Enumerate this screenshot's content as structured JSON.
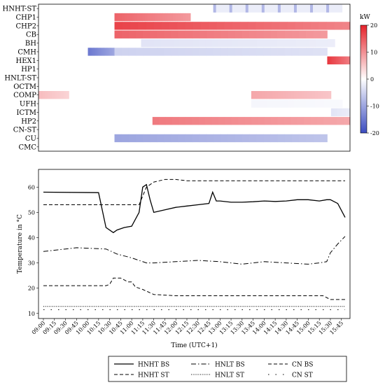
{
  "chart_data": [
    {
      "type": "heatmap",
      "title": "",
      "colorbar": {
        "label": "kW",
        "ticks": [
          20,
          10,
          0,
          -10,
          -20
        ],
        "range": [
          -20,
          20
        ],
        "colormap": "diverging",
        "colors": {
          "negative": "#3b4cc0",
          "zero": "#ffffff",
          "positive": "#e5222a"
        }
      },
      "rows": [
        "HNHT-ST",
        "CHP1",
        "CHP2",
        "CB",
        "BH",
        "CMH",
        "HEX1",
        "HP1",
        "HNLT-ST",
        "OCTM",
        "COMP",
        "UFH",
        "ICTM",
        "HP2",
        "CN-ST",
        "CU",
        "CMC"
      ],
      "x_range": [
        "09:00",
        "15:50"
      ],
      "segments": [
        {
          "row": "HNHT-ST",
          "start": "12:50",
          "end": "15:40",
          "value": -8,
          "pattern": "pulses"
        },
        {
          "row": "CHP1",
          "start": "10:40",
          "end": "12:20",
          "value": 14
        },
        {
          "row": "CHP2",
          "start": "10:40",
          "end": "15:50",
          "value": 17
        },
        {
          "row": "CB",
          "start": "10:40",
          "end": "15:20",
          "value": 14
        },
        {
          "row": "BH",
          "start": "11:15",
          "end": "15:30",
          "value": -3
        },
        {
          "row": "CMH",
          "start": "10:05",
          "end": "10:40",
          "value": -15
        },
        {
          "row": "CMH",
          "start": "10:40",
          "end": "15:20",
          "value": -5
        },
        {
          "row": "HEX1",
          "start": "15:20",
          "end": "15:50",
          "value": 18
        },
        {
          "row": "COMP",
          "start": "09:00",
          "end": "09:40",
          "value": 6
        },
        {
          "row": "COMP",
          "start": "13:40",
          "end": "15:25",
          "value": 8
        },
        {
          "row": "UFH",
          "start": "13:40",
          "end": "15:40",
          "value": -1
        },
        {
          "row": "ICTM",
          "start": "15:25",
          "end": "15:50",
          "value": -3
        },
        {
          "row": "HP2",
          "start": "11:30",
          "end": "15:50",
          "value": 12
        },
        {
          "row": "CU",
          "start": "10:40",
          "end": "15:20",
          "value": -10
        }
      ]
    },
    {
      "type": "line",
      "title": "",
      "xlabel": "Time (UTC+1)",
      "ylabel": "Temperature in °C",
      "ylim": [
        8,
        67
      ],
      "yticks": [
        10,
        20,
        30,
        40,
        50,
        60
      ],
      "x_ticks": [
        "09:00",
        "09:15",
        "09:30",
        "09:45",
        "10:00",
        "10:15",
        "10:30",
        "10:45",
        "11:00",
        "11:15",
        "11:30",
        "11:45",
        "12:00",
        "12:15",
        "12:30",
        "12:45",
        "13:00",
        "13:15",
        "13:30",
        "13:45",
        "14:00",
        "14:15",
        "14:30",
        "14:45",
        "15:00",
        "15:15",
        "15:30",
        "15:45"
      ],
      "x_range": [
        "09:00",
        "15:50"
      ],
      "series": [
        {
          "name": "HNHT BS",
          "style": "solid",
          "x": [
            "09:00",
            "10:15",
            "10:25",
            "10:35",
            "10:40",
            "10:50",
            "11:00",
            "11:10",
            "11:15",
            "11:20",
            "11:25",
            "11:30",
            "11:45",
            "12:00",
            "12:15",
            "12:30",
            "12:45",
            "12:50",
            "12:55",
            "13:00",
            "13:15",
            "13:30",
            "13:45",
            "14:00",
            "14:15",
            "14:30",
            "14:45",
            "15:00",
            "15:15",
            "15:25",
            "15:30",
            "15:40",
            "15:50"
          ],
          "y": [
            58,
            57.8,
            44,
            42,
            43,
            44,
            44.5,
            50,
            60,
            61,
            55,
            50,
            51,
            52,
            52.5,
            53,
            53.5,
            58,
            54.5,
            54.5,
            54,
            54,
            54.2,
            54.5,
            54.3,
            54.5,
            55,
            55,
            54.5,
            55,
            55,
            53.5,
            48
          ]
        },
        {
          "name": "HNHT ST",
          "style": "dashed",
          "x": [
            "09:00",
            "11:10",
            "11:20",
            "11:30",
            "11:45",
            "12:00",
            "12:15",
            "12:30",
            "12:45",
            "13:00",
            "13:15",
            "13:30",
            "13:45",
            "14:00",
            "14:30",
            "15:00",
            "15:25",
            "15:50"
          ],
          "y": [
            53,
            53,
            60,
            62,
            63,
            63,
            62.5,
            62.5,
            62.5,
            62.5,
            62.5,
            62.5,
            62.5,
            62.5,
            62.5,
            62.5,
            62.5,
            62.5
          ]
        },
        {
          "name": "HNLT BS",
          "style": "dashdot",
          "x": [
            "09:00",
            "09:30",
            "09:45",
            "10:00",
            "10:25",
            "10:40",
            "11:00",
            "11:20",
            "11:30",
            "12:00",
            "12:30",
            "13:00",
            "13:30",
            "14:00",
            "14:30",
            "15:00",
            "15:15",
            "15:25",
            "15:30",
            "15:40",
            "15:50"
          ],
          "y": [
            34.5,
            35.5,
            36,
            35.8,
            35.5,
            33.5,
            32,
            30,
            30,
            30.5,
            31,
            30.5,
            29.5,
            30.5,
            30,
            29.5,
            30,
            30.5,
            34,
            37.5,
            40.5
          ]
        },
        {
          "name": "HNLT ST",
          "style": "dotted",
          "x": [
            "09:00",
            "15:50"
          ],
          "y": [
            12.8,
            12.8
          ]
        },
        {
          "name": "CN BS",
          "style": "dashed",
          "x": [
            "09:00",
            "10:25",
            "10:30",
            "10:35",
            "10:45",
            "10:55",
            "11:00",
            "11:05",
            "11:15",
            "11:30",
            "12:00",
            "12:30",
            "13:00",
            "13:30",
            "14:00",
            "14:30",
            "15:00",
            "15:20",
            "15:30",
            "15:50"
          ],
          "y": [
            21,
            21,
            21.5,
            24,
            24,
            22.5,
            22.5,
            20.5,
            19.5,
            17.5,
            17,
            17,
            17,
            17,
            17,
            17,
            17,
            17,
            15.5,
            15.5
          ]
        },
        {
          "name": "CN ST",
          "style": "dashdot-sparse",
          "x": [
            "09:00",
            "15:50"
          ],
          "y": [
            11.5,
            11.5
          ]
        }
      ],
      "legend": {
        "placement": "bottom",
        "columns": 3,
        "order": [
          "HNHT BS",
          "HNHT ST",
          "HNLT BS",
          "HNLT ST",
          "CN BS",
          "CN ST"
        ]
      }
    }
  ]
}
